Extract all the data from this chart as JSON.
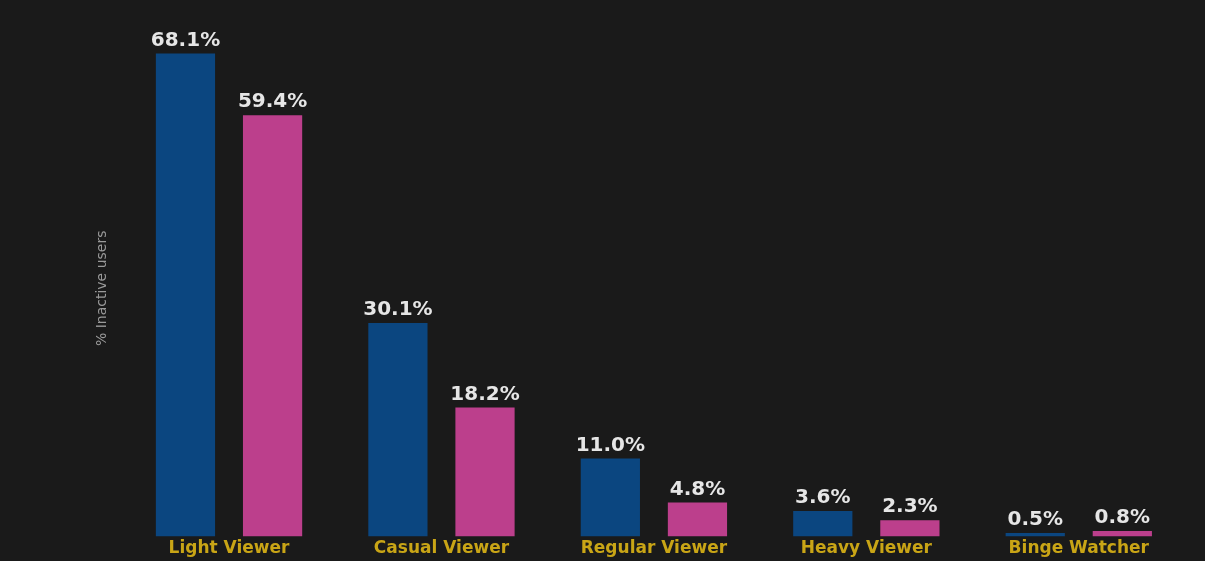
{
  "chart_data": {
    "type": "bar",
    "ylabel": "% Inactive users",
    "categories": [
      "Light Viewer",
      "Casual Viewer",
      "Regular Viewer",
      "Heavy Viewer",
      "Binge Watcher"
    ],
    "series": [
      {
        "color": "#0b4680",
        "values": [
          68.1,
          30.1,
          11.0,
          3.6,
          0.5
        ],
        "value_labels": [
          "68.1%",
          "30.1%",
          "11.0%",
          "3.6%",
          "0.5%"
        ]
      },
      {
        "color": "#bc3f8c",
        "values": [
          59.4,
          18.2,
          4.8,
          2.3,
          0.8
        ],
        "value_labels": [
          "59.4%",
          "18.2%",
          "4.8%",
          "2.3%",
          "0.8%"
        ]
      }
    ],
    "grid": false,
    "legend": false
  }
}
